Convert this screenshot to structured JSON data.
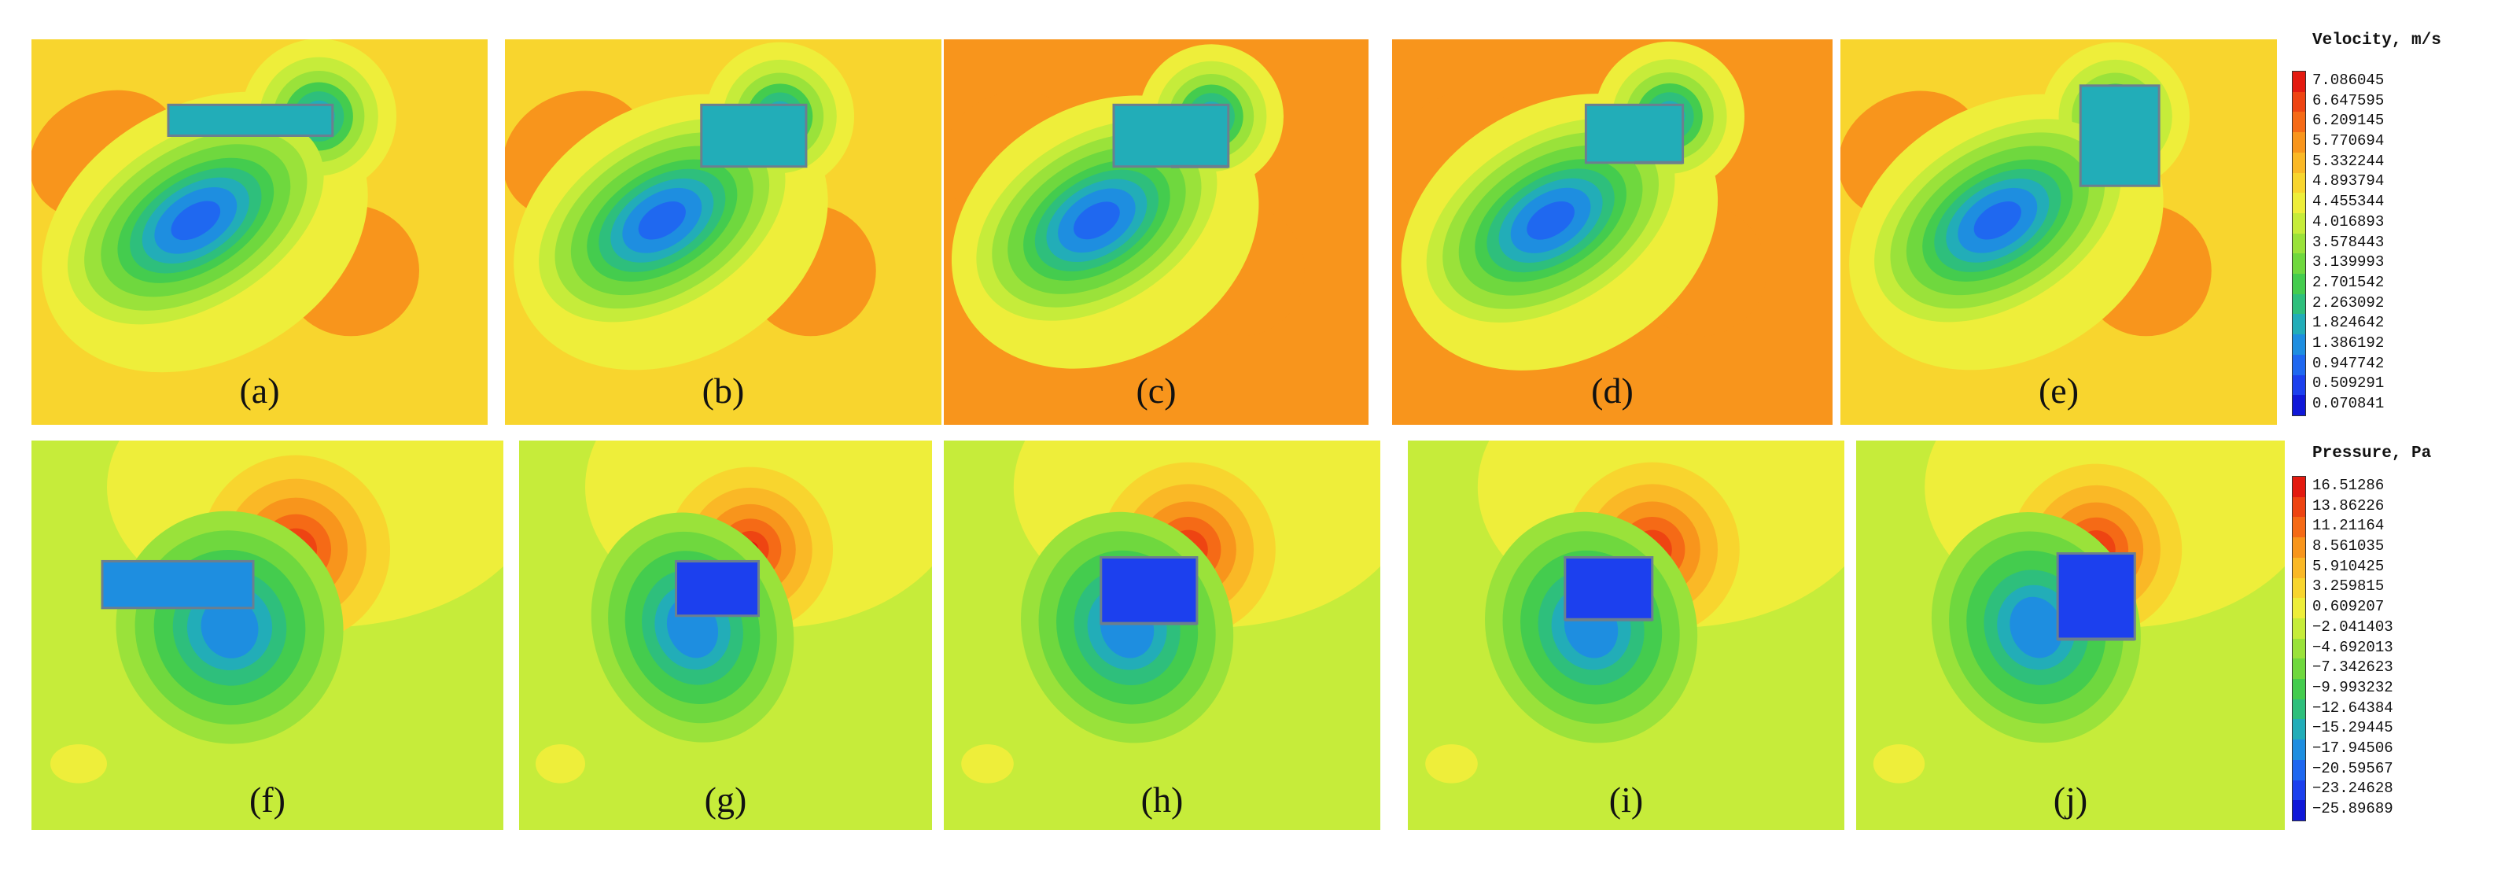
{
  "velocity_legend": {
    "title": "Velocity, m/s",
    "ticks": [
      "7.086045",
      "6.647595",
      "6.209145",
      "5.770694",
      "5.332244",
      "4.893794",
      "4.455344",
      "4.016893",
      "3.578443",
      "3.139993",
      "2.701542",
      "2.263092",
      "1.824642",
      "1.386192",
      "0.947742",
      "0.509291",
      "0.070841"
    ],
    "colors": [
      "#e31a10",
      "#ee4412",
      "#f56a16",
      "#f8951c",
      "#fab826",
      "#f8d52e",
      "#eeee3a",
      "#c6ec3a",
      "#9ae23a",
      "#6fd83e",
      "#44cc4e",
      "#2ebf7c",
      "#22adb8",
      "#1e8ee0",
      "#1f68f0",
      "#1c40ee",
      "#1018d8"
    ]
  },
  "pressure_legend": {
    "title": "Pressure, Pa",
    "ticks": [
      "16.51286",
      "13.86226",
      "11.21164",
      "8.561035",
      "5.910425",
      "3.259815",
      "0.609207",
      "−2.041403",
      "−4.692013",
      "−7.342623",
      "−9.993232",
      "−12.64384",
      "−15.29445",
      "−17.94506",
      "−20.59567",
      "−23.24628",
      "−25.89689"
    ],
    "colors": [
      "#e31a10",
      "#ee4412",
      "#f56a16",
      "#f8951c",
      "#fab826",
      "#f8d52e",
      "#eeee3a",
      "#c6ec3a",
      "#9ae23a",
      "#6fd83e",
      "#44cc4e",
      "#2ebf7c",
      "#22adb8",
      "#1e8ee0",
      "#1f68f0",
      "#1c40ee",
      "#1018d8"
    ]
  },
  "velocity_panels": [
    {
      "id": "a",
      "label": "(a)",
      "background": "#f8d52e",
      "field": "velocity",
      "obstacle": "long"
    },
    {
      "id": "b",
      "label": "(b)",
      "background": "#f8d52e",
      "field": "velocity",
      "obstacle": "medium"
    },
    {
      "id": "c",
      "label": "(c)",
      "background": "#f8951c",
      "field": "velocity",
      "obstacle": "medium-step"
    },
    {
      "id": "d",
      "label": "(d)",
      "background": "#f8951c",
      "field": "velocity",
      "obstacle": "short-step"
    },
    {
      "id": "e",
      "label": "(e)",
      "background": "#f8d52e",
      "field": "velocity",
      "obstacle": "tall"
    }
  ],
  "pressure_panels": [
    {
      "id": "f",
      "label": "(f)",
      "background": "#c6ec3a",
      "field": "pressure",
      "obstacle": "long"
    },
    {
      "id": "g",
      "label": "(g)",
      "background": "#c6ec3a",
      "field": "pressure",
      "obstacle": "medium"
    },
    {
      "id": "h",
      "label": "(h)",
      "background": "#c6ec3a",
      "field": "pressure",
      "obstacle": "medium-step"
    },
    {
      "id": "i",
      "label": "(i)",
      "background": "#c6ec3a",
      "field": "pressure",
      "obstacle": "short-step"
    },
    {
      "id": "j",
      "label": "(j)",
      "background": "#c6ec3a",
      "field": "pressure",
      "obstacle": "tall"
    }
  ]
}
